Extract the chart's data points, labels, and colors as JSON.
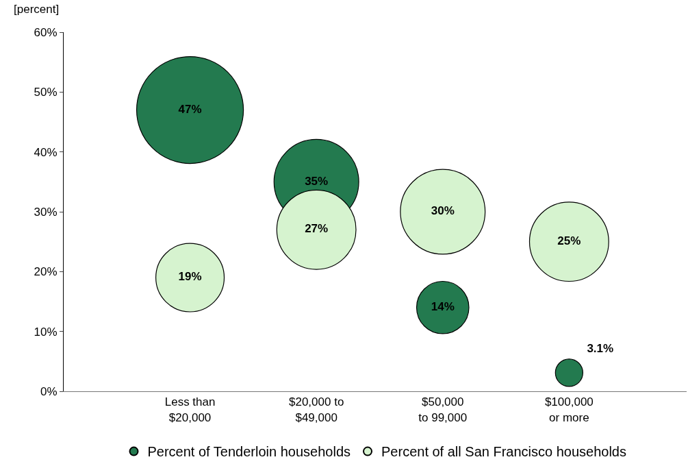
{
  "chart_data": {
    "type": "bubble",
    "ylabel": "[percent]",
    "categories": [
      "Less than\n$20,000",
      "$20,000 to\n$49,000",
      "$50,000\nto 99,000",
      "$100,000\nor more"
    ],
    "series": [
      {
        "name": "Percent of Tenderloin households",
        "color": "#237a4f",
        "values": [
          47,
          35,
          14,
          3.1
        ],
        "sizes": [
          1,
          0.63,
          0.24,
          0.066
        ],
        "value_labels": [
          "47%",
          "35%",
          "14%",
          "3.1%"
        ]
      },
      {
        "name": "Percent of all San Francisco households",
        "color": "#d6f3cf",
        "values": [
          19,
          27,
          30,
          25
        ],
        "sizes": [
          0.41,
          0.55,
          0.63,
          0.55
        ],
        "value_labels": [
          "19%",
          "27%",
          "30%",
          "25%"
        ]
      }
    ],
    "ylim": [
      0,
      60
    ],
    "yticks": [
      {
        "value": 0,
        "label": "0%"
      },
      {
        "value": 10,
        "label": "10%"
      },
      {
        "value": 20,
        "label": "20%"
      },
      {
        "value": 30,
        "label": "30%"
      },
      {
        "value": 40,
        "label": "40%"
      },
      {
        "value": 50,
        "label": "50%"
      },
      {
        "value": 60,
        "label": "60%"
      }
    ],
    "legend": "bottom",
    "marker": "circle"
  }
}
